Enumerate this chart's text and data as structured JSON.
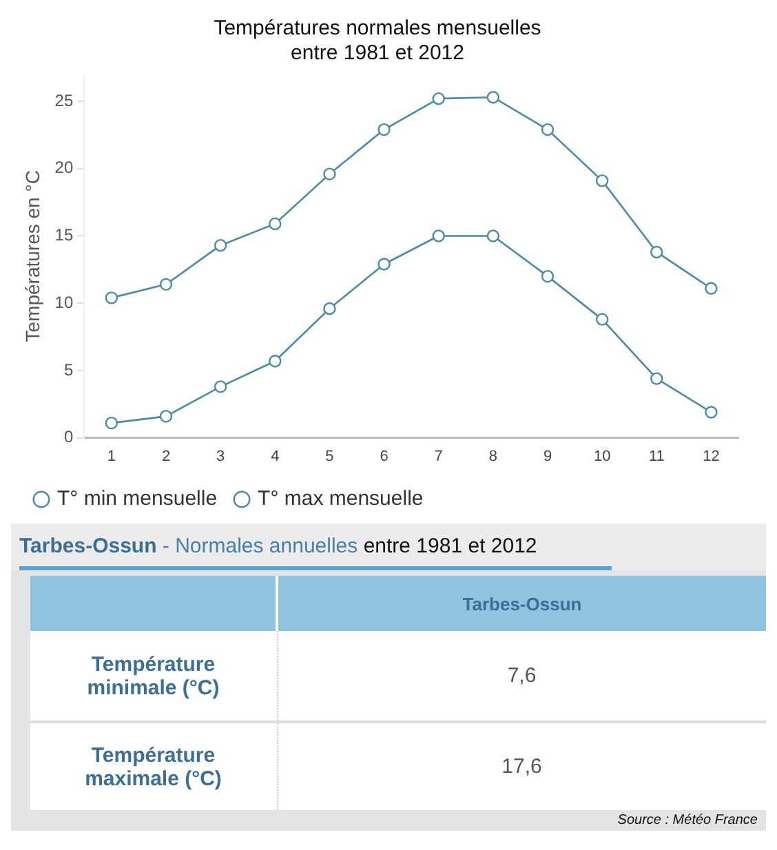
{
  "chart_data": {
    "type": "line",
    "title": "Températures normales mensuelles\nentre 1981 et 2012",
    "ylabel": "Températures en °C",
    "x": [
      1,
      2,
      3,
      4,
      5,
      6,
      7,
      8,
      9,
      10,
      11,
      12
    ],
    "xlim": [
      0.5,
      12.5
    ],
    "xticks": [
      1,
      2,
      3,
      4,
      5,
      6,
      7,
      8,
      9,
      10,
      11,
      12
    ],
    "series": [
      {
        "name": "T° min mensuelle",
        "color": "#4a8aab",
        "values": [
          1.1,
          1.6,
          3.8,
          5.7,
          9.6,
          12.9,
          15.0,
          15.0,
          12.0,
          8.8,
          4.4,
          1.9
        ]
      },
      {
        "name": "T° max mensuelle",
        "color": "#4a8aab",
        "values": [
          10.4,
          11.4,
          14.3,
          15.9,
          19.6,
          22.9,
          25.2,
          25.3,
          22.9,
          19.1,
          13.8,
          11.1
        ]
      }
    ],
    "ylim": [
      0,
      27
    ],
    "yticks": [
      0,
      5,
      10,
      15,
      20,
      25
    ],
    "grid": false,
    "legend": "bottom left",
    "marker": "circle",
    "line_style": "solid",
    "annotations": [
      "Tarbes-Ossun",
      "- Normales annuelles",
      "entre 1981 et 2012",
      "Tarbes-Ossun",
      "Température minimale (°C)",
      "7,6",
      "Température maximale (°C)",
      "17,6",
      "Source : Météo France"
    ]
  }
}
